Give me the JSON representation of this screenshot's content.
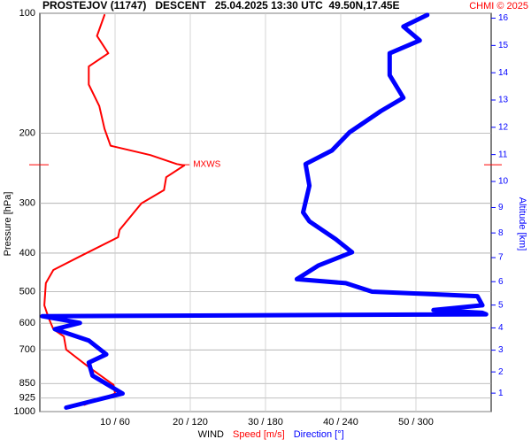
{
  "chart_data": {
    "type": "profile",
    "title": "PROSTEJOV (11747)   DESCENT   25.04.2025 13:30 UTC  49.50N,17.45E",
    "credit": "CHMI © 2025",
    "ylabel": "Pressure [hPa]",
    "y2label": "Altitude [km]",
    "xlabel": "WIND",
    "log_y": true,
    "grid": true,
    "ylim": [
      100,
      1000
    ],
    "yticks": [
      100,
      200,
      300,
      400,
      500,
      600,
      700,
      850,
      925,
      1000
    ],
    "y2ticks": [
      1,
      2,
      3,
      4,
      5,
      6,
      7,
      8,
      9,
      10,
      11,
      12,
      13,
      14,
      15,
      16
    ],
    "y2color": "#0000ff",
    "xlim": [
      0,
      60
    ],
    "x2lim": [
      0,
      360
    ],
    "xticks": [
      {
        "value": 10,
        "label": "10 / 60"
      },
      {
        "value": 20,
        "label": "20 / 120"
      },
      {
        "value": 30,
        "label": "30 / 180"
      },
      {
        "value": 40,
        "label": "40 / 240"
      },
      {
        "value": 50,
        "label": "50 / 300"
      }
    ],
    "series": [
      {
        "name": "Speed [m/s]",
        "color": "#ff0000",
        "width": 2,
        "axis": "x",
        "pressure": [
          101,
          114,
          126,
          136,
          151,
          171,
          195,
          215,
          227,
          239,
          241,
          258,
          278,
          300,
          350,
          365,
          408,
          441,
          476,
          541,
          584,
          621,
          648,
          699,
          773,
          857,
          901,
          962
        ],
        "values": [
          8.6,
          7.6,
          9.1,
          6.5,
          6.5,
          7.9,
          8.6,
          9.4,
          14.7,
          18.2,
          19.2,
          16.8,
          16.5,
          13.5,
          10.6,
          10.4,
          5.3,
          1.8,
          0.8,
          0.6,
          1.2,
          1.8,
          3.2,
          3.5,
          6.5,
          9.8,
          10,
          5.9
        ]
      },
      {
        "name": "Direction [°]",
        "color": "#0000ff",
        "width": 5,
        "axis": "x2",
        "pressure": [
          101,
          108,
          117,
          126,
          143,
          163,
          176,
          199,
          221,
          239,
          271,
          316,
          333,
          369,
          398,
          430,
          465,
          476,
          500,
          513,
          541,
          556,
          565,
          570,
          576,
          599,
          621,
          663,
          718,
          753,
          812,
          901,
          977
        ],
        "values": [
          309,
          290,
          303,
          279,
          279,
          290,
          272,
          247,
          233,
          212,
          215,
          210,
          215,
          236,
          249,
          222,
          205,
          244,
          265,
          349,
          353,
          314,
          353,
          356,
          2,
          32,
          12,
          39,
          53,
          39,
          42,
          66,
          21
        ]
      }
    ],
    "annotation": {
      "text": "MXWS",
      "pressure": 240,
      "speed": 19.2
    }
  }
}
